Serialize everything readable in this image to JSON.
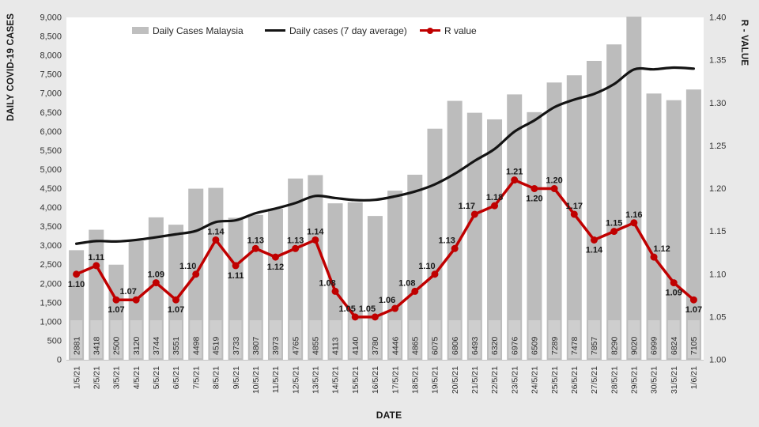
{
  "page": {
    "background": "#e9e9e9",
    "plot_background": "#ffffff"
  },
  "legend": {
    "items": [
      {
        "label": "Daily Cases Malaysia",
        "swatch": "bar",
        "color": "#bfbfbf"
      },
      {
        "label": "Daily cases (7 day average)",
        "swatch": "line",
        "color": "#141414"
      },
      {
        "label": "R value",
        "swatch": "line-marker",
        "color": "#c00000"
      }
    ]
  },
  "chart_data": {
    "type": "combo-bar-line",
    "title": "",
    "legend_position": "top",
    "grid": false,
    "x_axis": {
      "title": "DATE"
    },
    "left_axis": {
      "title": "DAILY COVID-19 CASES",
      "min": 0,
      "max": 9000,
      "step": 500,
      "tick_labels": [
        "9,000",
        "8,500",
        "8,000",
        "7,500",
        "7,000",
        "6,500",
        "6,000",
        "5,500",
        "5,000",
        "4,500",
        "4,000",
        "3,500",
        "3,000",
        "2,500",
        "2,000",
        "1,500",
        "1,000",
        "500",
        "0"
      ]
    },
    "right_axis": {
      "title": "R - VALUE",
      "min": 1.0,
      "max": 1.4,
      "step": 0.05,
      "tick_labels": [
        "1.40",
        "1.35",
        "1.30",
        "1.25",
        "1.20",
        "1.15",
        "1.10",
        "1.05",
        "1.00"
      ]
    },
    "categories": [
      "1/5/21",
      "2/5/21",
      "3/5/21",
      "4/5/21",
      "5/5/21",
      "6/5/21",
      "7/5/21",
      "8/5/21",
      "9/5/21",
      "10/5/21",
      "11/5/21",
      "12/5/21",
      "13/5/21",
      "14/5/21",
      "15/5/21",
      "16/5/21",
      "17/5/21",
      "18/5/21",
      "19/5/21",
      "20/5/21",
      "21/5/21",
      "22/5/21",
      "23/5/21",
      "24/5/21",
      "25/5/21",
      "26/5/21",
      "27/5/21",
      "28/5/21",
      "29/5/21",
      "30/5/21",
      "31/5/21",
      "1/6/21"
    ],
    "series": [
      {
        "name": "Daily Cases Malaysia",
        "type": "bar",
        "axis": "left",
        "color": "#bcbcbc",
        "label_box_color": "#cecece",
        "label_color": "#2f2f2f",
        "values": [
          2881,
          3418,
          2500,
          3120,
          3744,
          3551,
          4498,
          4519,
          3733,
          3807,
          3973,
          4765,
          4855,
          4113,
          4140,
          3780,
          4446,
          4865,
          6075,
          6806,
          6493,
          6320,
          6976,
          6509,
          7289,
          7478,
          7857,
          8290,
          9020,
          6999,
          6824,
          7105
        ],
        "show_value_labels": true
      },
      {
        "name": "Daily cases (7 day average)",
        "type": "line",
        "axis": "left",
        "smooth": true,
        "color": "#141414",
        "width": 3.2,
        "values": [
          3050,
          3120,
          3110,
          3150,
          3220,
          3300,
          3387,
          3621,
          3666,
          3853,
          3975,
          4121,
          4307,
          4252,
          4198,
          4205,
          4296,
          4423,
          4611,
          4889,
          5229,
          5541,
          5997,
          6292,
          6638,
          6839,
          6989,
          7246,
          7631,
          7635,
          7680,
          7653
        ]
      },
      {
        "name": "R value",
        "type": "line",
        "axis": "right",
        "marker": true,
        "color": "#c00000",
        "width": 3.5,
        "marker_radius": 4.5,
        "values": [
          1.1,
          1.11,
          1.07,
          1.07,
          1.09,
          1.07,
          1.1,
          1.14,
          1.11,
          1.13,
          1.12,
          1.13,
          1.14,
          1.08,
          1.05,
          1.05,
          1.06,
          1.08,
          1.1,
          1.13,
          1.17,
          1.18,
          1.21,
          1.2,
          1.2,
          1.17,
          1.14,
          1.15,
          1.16,
          1.12,
          1.09,
          1.07
        ],
        "point_label_color": "#1a1a1a",
        "point_label_pos": [
          "b",
          "a",
          "b",
          "al",
          "a",
          "b",
          "al",
          "a",
          "b",
          "a",
          "b",
          "a",
          "a",
          "al",
          "al",
          "al",
          "al",
          "al",
          "al",
          "al",
          "al",
          "a",
          "a",
          "b",
          "a",
          "a",
          "b",
          "a",
          "a",
          "ar",
          "b",
          "b"
        ]
      }
    ]
  }
}
